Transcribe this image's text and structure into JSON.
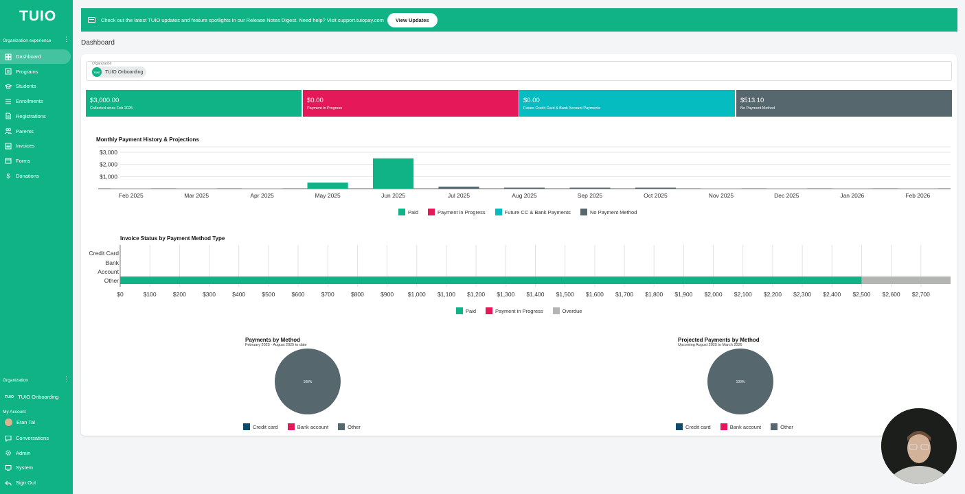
{
  "brand": {
    "logo": "TUIO",
    "accent": "#0fb386"
  },
  "sidebar": {
    "org_experience_label": "Organization experience",
    "items": [
      {
        "label": "Dashboard",
        "icon": "dashboard-icon",
        "active": true
      },
      {
        "label": "Programs",
        "icon": "programs-icon"
      },
      {
        "label": "Students",
        "icon": "students-icon"
      },
      {
        "label": "Enrollments",
        "icon": "enrollments-icon"
      },
      {
        "label": "Registrations",
        "icon": "registrations-icon"
      },
      {
        "label": "Parents",
        "icon": "parents-icon"
      },
      {
        "label": "Invoices",
        "icon": "invoices-icon"
      },
      {
        "label": "Forms",
        "icon": "forms-icon"
      },
      {
        "label": "Donations",
        "icon": "dollar-icon"
      }
    ],
    "organization_label": "Organization",
    "org_badge": "TUIO",
    "org_name": "TUIO Onboarding",
    "my_account_label": "My Account",
    "user_name": "Etan Tal",
    "bottom_items": [
      {
        "label": "Conversations",
        "icon": "chat-icon"
      },
      {
        "label": "Admin",
        "icon": "gear-icon"
      },
      {
        "label": "System",
        "icon": "monitor-icon"
      },
      {
        "label": "Sign Out",
        "icon": "sign-out-icon"
      }
    ]
  },
  "banner": {
    "text": "Check out the latest TUIO updates and feature spotlights in our Release Notes Digest. Need help? Visit support.tuiopay.com",
    "button": "View Updates"
  },
  "page_title": "Dashboard",
  "org_select": {
    "label": "Organization",
    "badge": "TUIO",
    "value": "TUIO Onboarding"
  },
  "stats": [
    {
      "value": "$3,000.00",
      "label": "Collected since Feb 2025",
      "color": "#0fb386"
    },
    {
      "value": "$0.00",
      "label": "Payment in Progress",
      "color": "#e5195a"
    },
    {
      "value": "$0.00",
      "label": "Future Credit Card & Bank Account Payments",
      "color": "#05bcc0"
    },
    {
      "value": "$513.10",
      "label": "No Payment Method",
      "color": "#56676e"
    }
  ],
  "chart_data": [
    {
      "type": "bar",
      "title": "Monthly Payment History & Projections",
      "categories": [
        "Feb 2025",
        "Mar 2025",
        "Apr 2025",
        "May 2025",
        "Jun 2025",
        "Jul 2025",
        "Aug 2025",
        "Sep 2025",
        "Oct 2025",
        "Nov 2025",
        "Dec 2025",
        "Jan 2026",
        "Feb 2026"
      ],
      "y_ticks": [
        "$1,000",
        "$2,000",
        "$3,000"
      ],
      "ylim": [
        0,
        3000
      ],
      "series": [
        {
          "name": "Paid",
          "color": "#0fb386",
          "values": [
            0,
            0,
            0,
            500,
            2500,
            0,
            0,
            0,
            0,
            0,
            0,
            0,
            0
          ]
        },
        {
          "name": "Payment in Progress",
          "color": "#e5195a",
          "values": [
            0,
            0,
            0,
            0,
            0,
            0,
            0,
            0,
            0,
            0,
            0,
            0,
            0
          ]
        },
        {
          "name": "Future CC & Bank Payments",
          "color": "#05bcc0",
          "values": [
            0,
            0,
            0,
            0,
            0,
            0,
            0,
            0,
            0,
            0,
            0,
            0,
            0
          ]
        },
        {
          "name": "No Payment Method",
          "color": "#56676e",
          "values": [
            0,
            0,
            0,
            0,
            0,
            170,
            85,
            85,
            85,
            0,
            0,
            0,
            0
          ]
        }
      ],
      "legend": "bottom",
      "grid": true
    },
    {
      "type": "bar",
      "orientation": "horizontal",
      "stacked": true,
      "title": "Invoice Status by Payment Method Type",
      "categories": [
        "Credit Card",
        "Bank Account",
        "Other"
      ],
      "x_ticks": [
        "$0",
        "$100",
        "$200",
        "$300",
        "$400",
        "$500",
        "$600",
        "$700",
        "$800",
        "$900",
        "$1,000",
        "$1,100",
        "$1,200",
        "$1,300",
        "$1,400",
        "$1,500",
        "$1,600",
        "$1,700",
        "$1,800",
        "$1,900",
        "$2,000",
        "$2,100",
        "$2,200",
        "$2,300",
        "$2,400",
        "$2,500",
        "$2,600",
        "$2,700"
      ],
      "xlim": [
        0,
        2800
      ],
      "series": [
        {
          "name": "Paid",
          "color": "#0fb386",
          "values": [
            0,
            0,
            2500
          ]
        },
        {
          "name": "Payment in Progress",
          "color": "#e5195a",
          "values": [
            0,
            0,
            0
          ]
        },
        {
          "name": "Overdue",
          "color": "#b3b5b3",
          "values": [
            0,
            0,
            300
          ]
        }
      ],
      "legend": "bottom",
      "grid": true
    },
    {
      "type": "pie",
      "title": "Payments by Method",
      "subtitle": "February 2025 - August 2025 to date",
      "slice_label": "100%",
      "categories": [
        "Credit card",
        "Bank account",
        "Other"
      ],
      "values": [
        0,
        0,
        100
      ],
      "colors": [
        "#0c4b6b",
        "#e5195a",
        "#56676e"
      ],
      "legend": "bottom"
    },
    {
      "type": "pie",
      "title": "Projected Payments by Method",
      "subtitle": "Upcoming August 2025 to March 2026",
      "slice_label": "100%",
      "categories": [
        "Credit card",
        "Bank account",
        "Other"
      ],
      "values": [
        0,
        0,
        100
      ],
      "colors": [
        "#0c4b6b",
        "#e5195a",
        "#56676e"
      ],
      "legend": "bottom"
    }
  ]
}
